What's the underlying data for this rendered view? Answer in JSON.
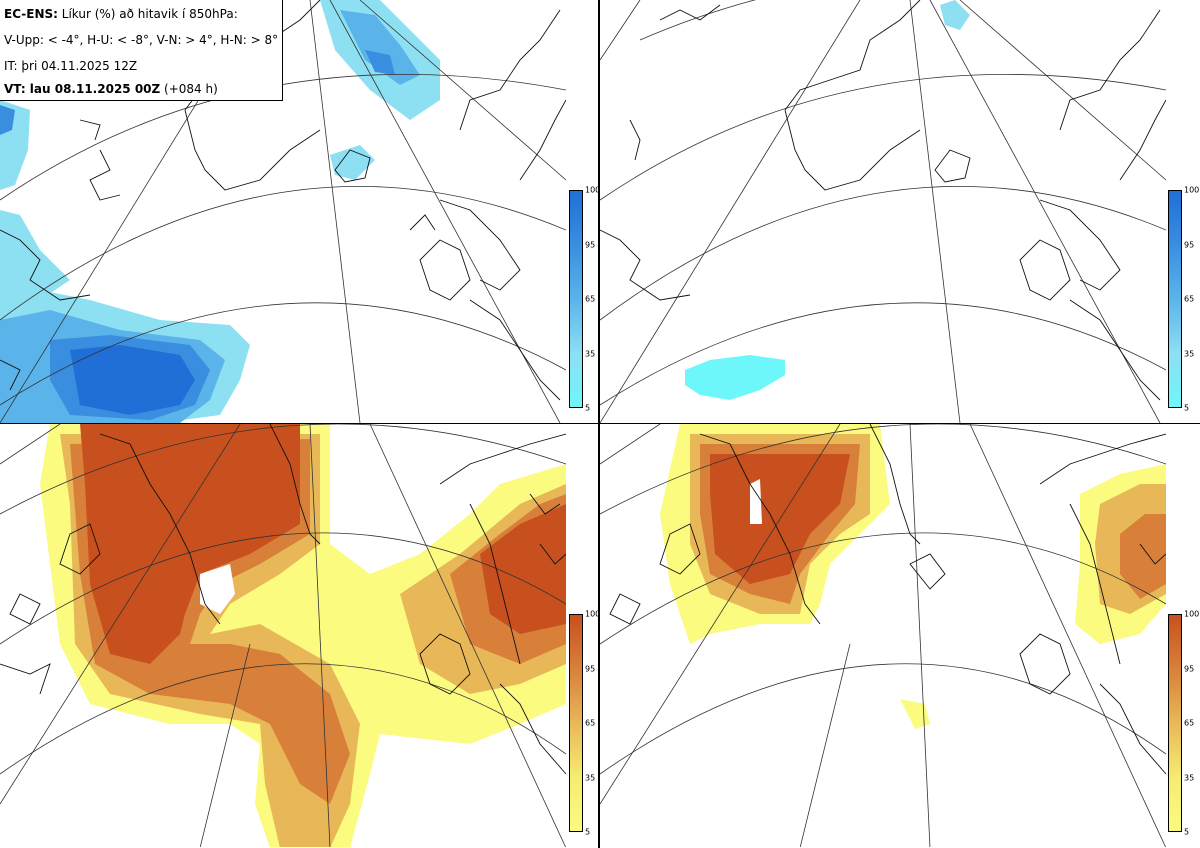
{
  "legend": {
    "title_bold": "EC-ENS:",
    "title_rest": " Líkur (%) að hitavik í 850hPa:",
    "line2": "V-Upp: < -4°, H-U: < -8°, V-N: > 4°, H-N: > 8°",
    "line3": "IT: þri 04.11.2025 12Z",
    "line4_bold": "VT: lau 08.11.2025 00Z",
    "line4_rest": " (+084 h)"
  },
  "colorbar": {
    "ticks": [
      "100",
      "95",
      "65",
      "35",
      "5"
    ],
    "cold_colors": [
      "#1f6fd6",
      "#3a8ee0",
      "#5ab4ea",
      "#8ddff2",
      "#6ef7fb"
    ],
    "warm_colors": [
      "#c8501e",
      "#d8803a",
      "#e8b858",
      "#f6ec70",
      "#fbfb80"
    ]
  },
  "panels": [
    {
      "name": "cold-4-probability",
      "scheme": "cold"
    },
    {
      "name": "cold-8-probability",
      "scheme": "cold"
    },
    {
      "name": "warm-4-probability",
      "scheme": "warm"
    },
    {
      "name": "warm-8-probability",
      "scheme": "warm"
    }
  ]
}
